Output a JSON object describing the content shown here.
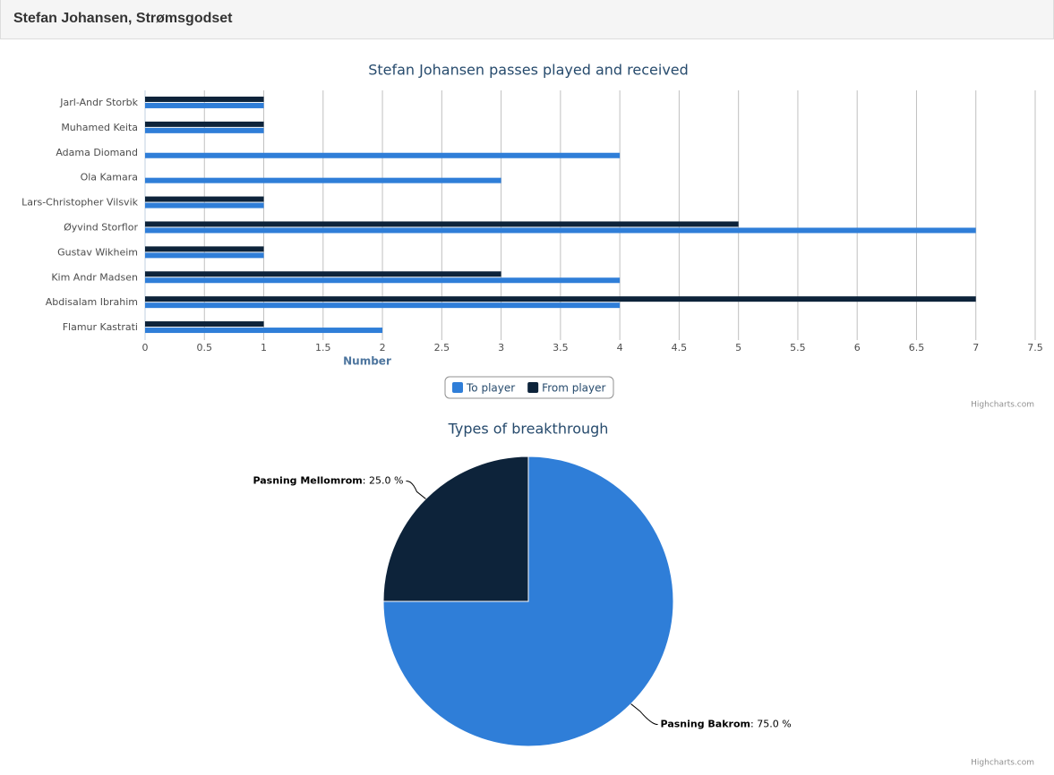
{
  "header": {
    "title": "Stefan Johansen, Strømsgodset"
  },
  "chart_data": [
    {
      "type": "bar",
      "orientation": "horizontal",
      "title": "Stefan Johansen passes played and received",
      "categories": [
        "Jarl-Andr Storbk",
        "Muhamed Keita",
        "Adama Diomand",
        "Ola Kamara",
        "Lars-Christopher Vilsvik",
        "Øyvind Storflor",
        "Gustav Wikheim",
        "Kim Andr Madsen",
        "Abdisalam Ibrahim",
        "Flamur Kastrati"
      ],
      "series": [
        {
          "name": "To player",
          "color": "#2f7ed8",
          "values": [
            1,
            1,
            4,
            3,
            1,
            7,
            1,
            4,
            4,
            2
          ]
        },
        {
          "name": "From player",
          "color": "#0d233a",
          "values": [
            1,
            1,
            null,
            null,
            1,
            5,
            1,
            3,
            7,
            1
          ]
        }
      ],
      "xlabel": "Number",
      "xlim": [
        0,
        7.5
      ],
      "xticks": [
        0,
        0.5,
        1,
        1.5,
        2,
        2.5,
        3,
        3.5,
        4,
        4.5,
        5,
        5.5,
        6,
        6.5,
        7,
        7.5
      ],
      "grid": true,
      "legend": "bottom",
      "credits": "Highcharts.com"
    },
    {
      "type": "pie",
      "title": "Types of breakthrough",
      "categories": [
        "Pasning Bakrom",
        "Pasning Mellomrom"
      ],
      "values": [
        75,
        25
      ],
      "value_labels": [
        ": 75.0 %",
        ": 25.0 %"
      ],
      "colors": [
        "#2f7ed8",
        "#0d233a"
      ],
      "credits": "Highcharts.com"
    }
  ]
}
